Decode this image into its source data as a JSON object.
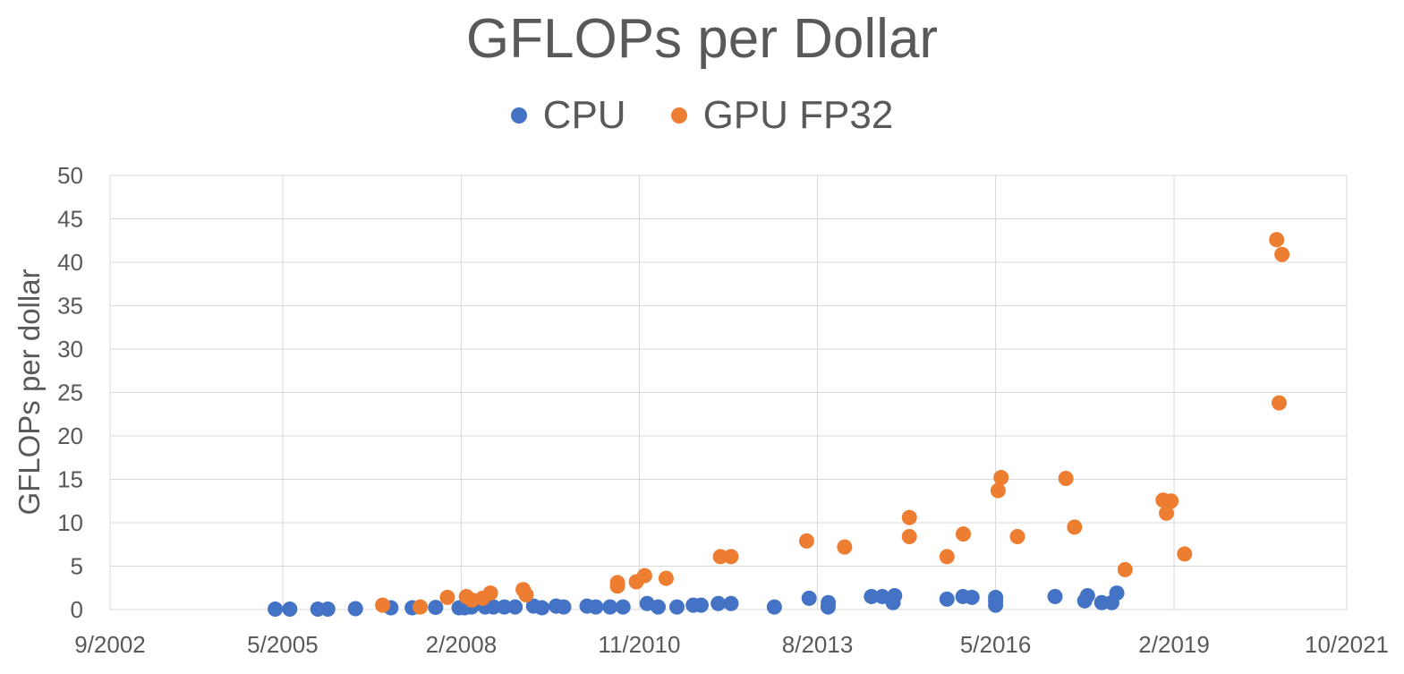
{
  "chart_data": {
    "type": "scatter",
    "title": "GFLOPs per Dollar",
    "xlabel": "",
    "ylabel": "GFLOPs per dollar",
    "x_ticks": [
      "9/2002",
      "5/2005",
      "2/2008",
      "11/2010",
      "8/2013",
      "5/2016",
      "2/2019",
      "10/2021"
    ],
    "ylim": [
      0,
      50
    ],
    "y_ticks": [
      "0",
      "5",
      "10",
      "15",
      "20",
      "25",
      "30",
      "35",
      "40",
      "45",
      "50"
    ],
    "grid": "on",
    "legend": "top-center",
    "series": [
      {
        "name": "CPU",
        "color": "#4472C4",
        "points": [
          [
            "2005-03-20",
            0.05
          ],
          [
            "2005-06-10",
            0.05
          ],
          [
            "2005-11-15",
            0.05
          ],
          [
            "2006-01-10",
            0.05
          ],
          [
            "2006-06-15",
            0.1
          ],
          [
            "2007-01-01",
            0.2
          ],
          [
            "2007-05-01",
            0.2
          ],
          [
            "2007-09-10",
            0.25
          ],
          [
            "2008-01-20",
            0.2
          ],
          [
            "2008-02-20",
            0.2
          ],
          [
            "2008-03-30",
            0.3
          ],
          [
            "2008-06-15",
            0.3
          ],
          [
            "2008-08-01",
            0.3
          ],
          [
            "2008-10-01",
            0.3
          ],
          [
            "2008-12-01",
            0.3
          ],
          [
            "2009-03-15",
            0.4
          ],
          [
            "2009-05-01",
            0.2
          ],
          [
            "2009-07-20",
            0.4
          ],
          [
            "2009-09-01",
            0.3
          ],
          [
            "2010-01-10",
            0.4
          ],
          [
            "2010-03-01",
            0.3
          ],
          [
            "2010-05-20",
            0.3
          ],
          [
            "2010-08-01",
            0.3
          ],
          [
            "2010-12-15",
            0.7
          ],
          [
            "2011-02-15",
            0.3
          ],
          [
            "2011-06-01",
            0.3
          ],
          [
            "2011-09-01",
            0.5
          ],
          [
            "2011-10-15",
            0.5
          ],
          [
            "2012-01-20",
            0.7
          ],
          [
            "2012-04-01",
            0.7
          ],
          [
            "2012-12-01",
            0.3
          ],
          [
            "2013-06-15",
            1.3
          ],
          [
            "2013-09-30",
            0.3
          ],
          [
            "2013-10-01",
            0.8
          ],
          [
            "2014-06-01",
            1.5
          ],
          [
            "2014-08-01",
            1.5
          ],
          [
            "2014-10-01",
            0.8
          ],
          [
            "2014-10-10",
            1.6
          ],
          [
            "2015-08-01",
            1.2
          ],
          [
            "2015-10-30",
            1.5
          ],
          [
            "2015-12-20",
            1.4
          ],
          [
            "2016-05-01",
            0.5
          ],
          [
            "2016-05-01",
            1.0
          ],
          [
            "2016-05-01",
            1.4
          ],
          [
            "2017-04-01",
            1.5
          ],
          [
            "2017-09-15",
            1.0
          ],
          [
            "2017-10-01",
            1.6
          ],
          [
            "2017-12-20",
            0.8
          ],
          [
            "2018-02-15",
            0.8
          ],
          [
            "2018-03-15",
            1.9
          ]
        ]
      },
      {
        "name": "GPU FP32",
        "color": "#ED7D31",
        "points": [
          [
            "2006-11-15",
            0.5
          ],
          [
            "2007-06-15",
            0.3
          ],
          [
            "2007-11-15",
            1.4
          ],
          [
            "2008-03-01",
            1.5
          ],
          [
            "2008-04-01",
            1.1
          ],
          [
            "2008-06-01",
            1.3
          ],
          [
            "2008-07-15",
            1.9
          ],
          [
            "2009-01-15",
            2.3
          ],
          [
            "2009-02-01",
            1.7
          ],
          [
            "2010-07-01",
            2.7
          ],
          [
            "2010-07-01",
            3.1
          ],
          [
            "2010-10-15",
            3.2
          ],
          [
            "2010-12-01",
            3.9
          ],
          [
            "2011-04-01",
            3.6
          ],
          [
            "2012-02-01",
            6.1
          ],
          [
            "2012-04-01",
            6.1
          ],
          [
            "2013-06-01",
            7.9
          ],
          [
            "2014-01-01",
            7.2
          ],
          [
            "2015-01-01",
            10.6
          ],
          [
            "2015-01-01",
            8.4
          ],
          [
            "2015-08-01",
            6.1
          ],
          [
            "2015-11-01",
            8.7
          ],
          [
            "2016-05-15",
            13.7
          ],
          [
            "2016-06-01",
            15.2
          ],
          [
            "2016-09-01",
            8.4
          ],
          [
            "2017-06-01",
            15.1
          ],
          [
            "2017-07-20",
            9.5
          ],
          [
            "2018-05-01",
            4.6
          ],
          [
            "2018-12-01",
            12.6
          ],
          [
            "2018-12-20",
            11.1
          ],
          [
            "2019-01-15",
            12.5
          ],
          [
            "2019-04-01",
            6.4
          ],
          [
            "2020-09-01",
            42.6
          ],
          [
            "2020-09-15",
            23.8
          ],
          [
            "2020-10-01",
            40.9
          ]
        ]
      }
    ]
  }
}
